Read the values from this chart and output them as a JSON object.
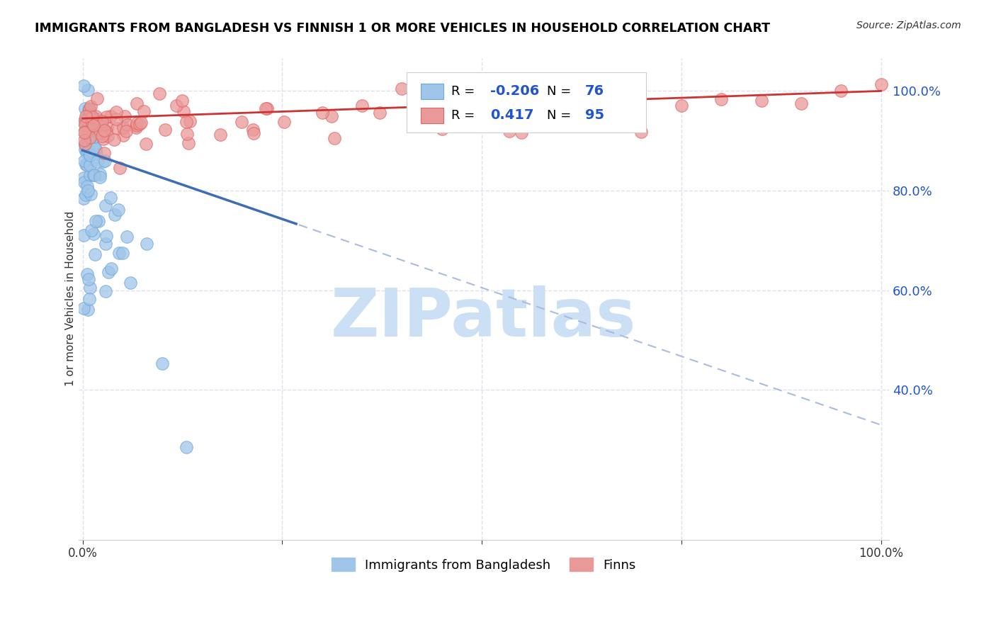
{
  "title": "IMMIGRANTS FROM BANGLADESH VS FINNISH 1 OR MORE VEHICLES IN HOUSEHOLD CORRELATION CHART",
  "source": "Source: ZipAtlas.com",
  "ylabel": "1 or more Vehicles in Household",
  "legend_label1": "Immigrants from Bangladesh",
  "legend_label2": "Finns",
  "R_blue": -0.206,
  "N_blue": 76,
  "R_pink": 0.417,
  "N_pink": 95,
  "color_blue": "#9fc5e8",
  "color_pink": "#ea9999",
  "edge_blue": "#6fa8dc",
  "edge_pink": "#e06666",
  "trendline_blue_solid": "#3d6db5",
  "trendline_pink": "#cc3333",
  "trendline_dashed": "#aabbdd",
  "background": "#ffffff",
  "grid_color": "#e0e0ee",
  "legend_box_color": "#f0f4ff",
  "legend_text_blue": "#2255cc",
  "watermark_color": "#cce0f5"
}
